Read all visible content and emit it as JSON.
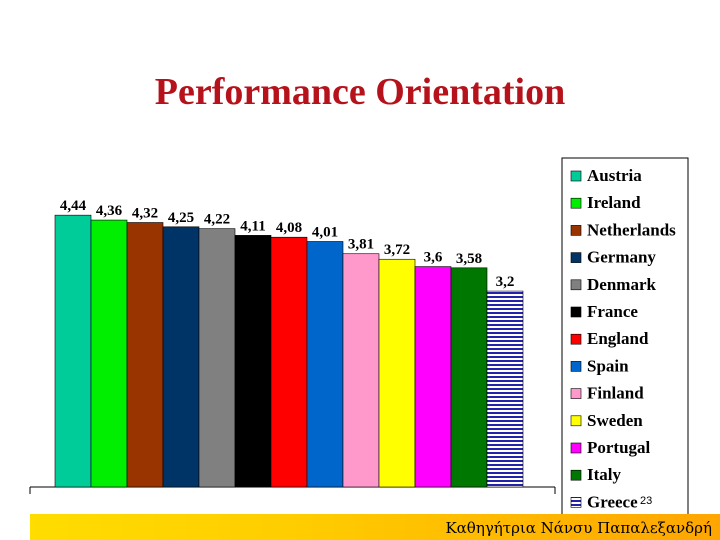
{
  "title": "Performance Orientation",
  "slide_number": "23",
  "footer": "Καθηγήτρια Νάνσυ Παπαλεξανδρή",
  "chart_data": {
    "type": "bar",
    "title": "Performance Orientation",
    "xlabel": "",
    "ylabel": "",
    "ylim": [
      0,
      4.9
    ],
    "grid": false,
    "legend_position": "right",
    "categories": [
      "Austria",
      "Ireland",
      "Netherlands",
      "Germany",
      "Denmark",
      "France",
      "England",
      "Spain",
      "Finland",
      "Sweden",
      "Portugal",
      "Italy",
      "Greece"
    ],
    "values": [
      4.44,
      4.36,
      4.32,
      4.25,
      4.22,
      4.11,
      4.08,
      4.01,
      3.81,
      3.72,
      3.6,
      3.58,
      3.2
    ],
    "value_labels": [
      "4,44",
      "4,36",
      "4,32",
      "4,25",
      "4,22",
      "4,11",
      "4,08",
      "4,01",
      "3,81",
      "3,72",
      "3,6",
      "3,58",
      "3,2"
    ],
    "colors": [
      "#00cc99",
      "#00ee00",
      "#993300",
      "#003366",
      "#808080",
      "#000000",
      "#ff0000",
      "#0066cc",
      "#ff99cc",
      "#ffff00",
      "#ff00ff",
      "#007700",
      "#2222aa"
    ],
    "patterns": [
      "solid",
      "solid",
      "solid",
      "solid",
      "solid",
      "solid",
      "solid",
      "solid",
      "solid",
      "solid",
      "solid",
      "solid",
      "horizontal-stripes"
    ]
  }
}
